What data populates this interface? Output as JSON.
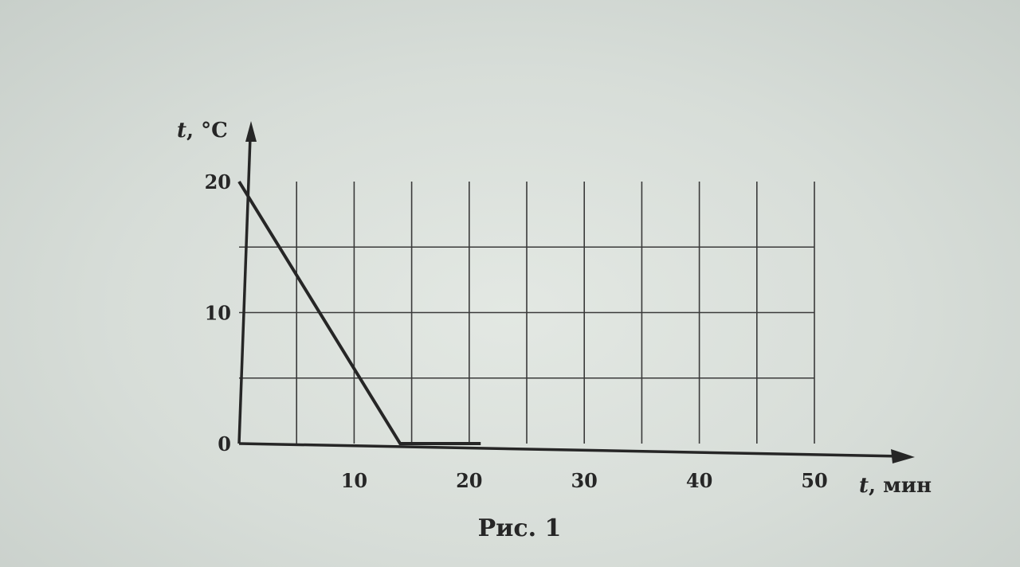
{
  "chart_data": {
    "type": "line",
    "title": "",
    "caption": "Рис. 1",
    "xlabel": {
      "symbol": "t",
      "unit": ", мин"
    },
    "ylabel": {
      "symbol": "t",
      "unit": ", °C"
    },
    "xlim": [
      0,
      50
    ],
    "ylim": [
      0,
      20
    ],
    "x_grid_step": 5,
    "y_grid_step": 5,
    "x_tick_labels": [
      "10",
      "20",
      "30",
      "40",
      "50"
    ],
    "x_tick_values": [
      10,
      20,
      30,
      40,
      50
    ],
    "y_tick_labels": [
      "0",
      "10",
      "20"
    ],
    "y_tick_values": [
      0,
      10,
      20
    ],
    "grid": true,
    "series": [
      {
        "x": [
          0,
          14,
          21
        ],
        "y": [
          20,
          0,
          0
        ]
      }
    ]
  }
}
